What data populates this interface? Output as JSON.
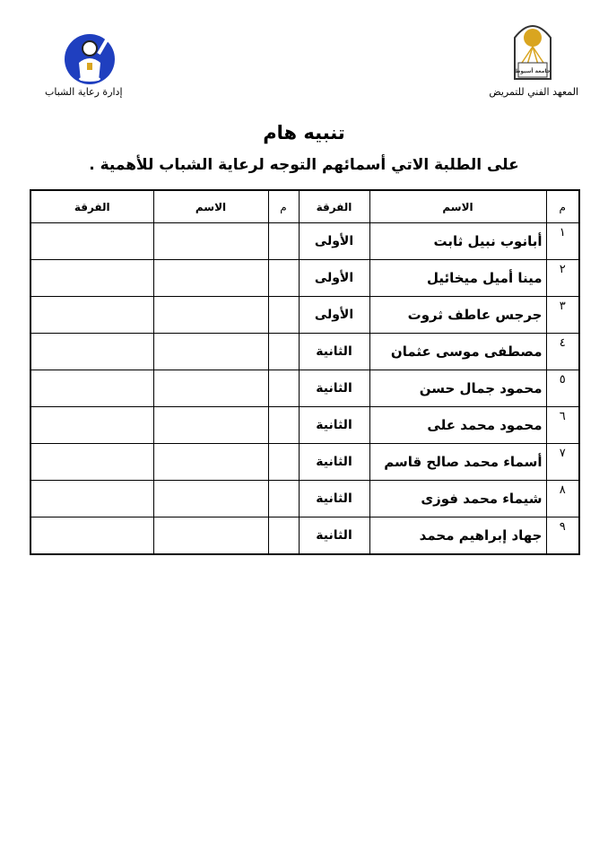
{
  "header": {
    "left_caption": "إدارة رعاية الشباب",
    "right_caption": "المعهد الفني للتمريض",
    "right_logo_text": "جامعة أسيوط"
  },
  "title": "تنبيه هام",
  "subtitle": "على الطلبة الاتي أسمائهم التوجه لرعاية الشباب للأهمية .",
  "table": {
    "headers": {
      "num": "م",
      "name": "الاسم",
      "year": "الفرقة"
    },
    "rows": [
      {
        "num": "١",
        "name": "أبانوب نبيل ثابت",
        "year": "الأولى"
      },
      {
        "num": "٢",
        "name": "مينا أميل ميخائيل",
        "year": "الأولى"
      },
      {
        "num": "٣",
        "name": "جرجس عاطف ثروت",
        "year": "الأولى"
      },
      {
        "num": "٤",
        "name": "مصطفى موسى عثمان",
        "year": "الثانية"
      },
      {
        "num": "٥",
        "name": "محمود جمال حسن",
        "year": "الثانية"
      },
      {
        "num": "٦",
        "name": "محمود محمد على",
        "year": "الثانية"
      },
      {
        "num": "٧",
        "name": "أسماء محمد صالح قاسم",
        "year": "الثانية"
      },
      {
        "num": "٨",
        "name": "شيماء محمد فوزى",
        "year": "الثانية"
      },
      {
        "num": "٩",
        "name": "جهاد إبراهيم محمد",
        "year": "الثانية"
      }
    ]
  },
  "colors": {
    "logo_blue": "#1f3fbf",
    "logo_gold": "#d9a520"
  }
}
